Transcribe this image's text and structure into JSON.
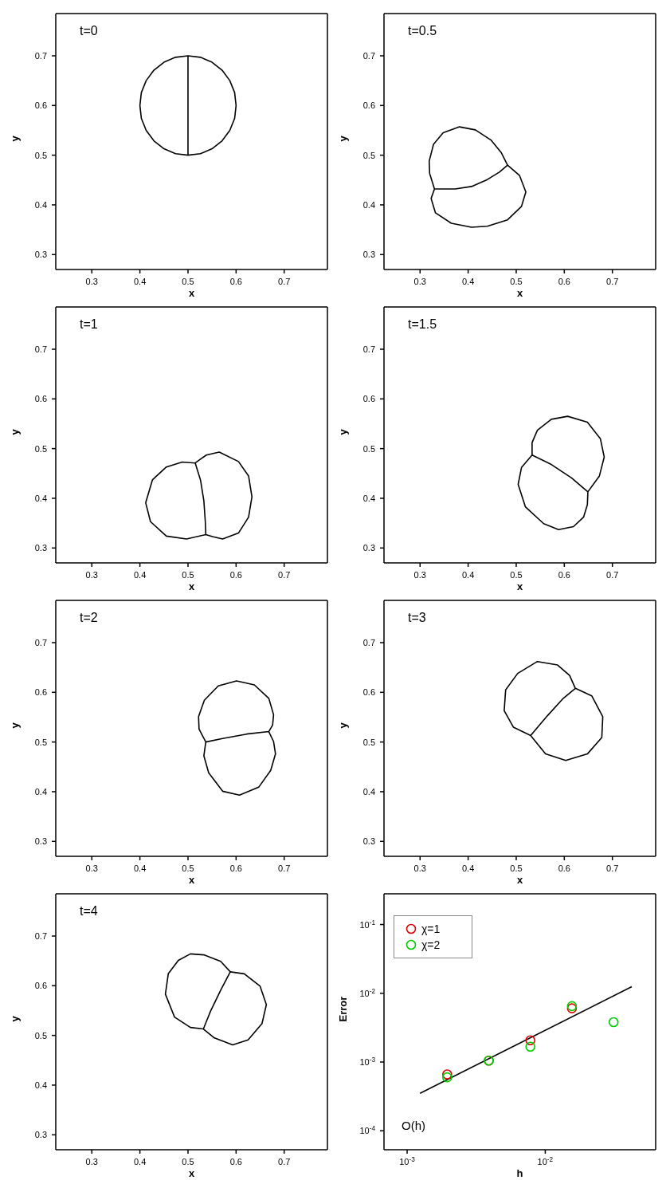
{
  "chart_data": [
    {
      "type": "line",
      "title": "t=0",
      "xlabel": "x",
      "ylabel": "y",
      "xlim": [
        0.225,
        0.79
      ],
      "ylim": [
        0.27,
        0.785
      ],
      "xticks": [
        0.3,
        0.4,
        0.5,
        0.6,
        0.7
      ],
      "yticks": [
        0.3,
        0.4,
        0.5,
        0.6,
        0.7
      ],
      "series": [
        {
          "color": "#000000",
          "x": [
            0.5,
            0.474,
            0.45,
            0.429,
            0.413,
            0.403,
            0.4,
            0.403,
            0.413,
            0.429,
            0.45,
            0.474,
            0.5,
            0.5,
            0.526,
            0.55,
            0.571,
            0.587,
            0.597,
            0.6,
            0.597,
            0.587,
            0.571,
            0.55,
            0.526,
            0.5
          ],
          "values": [
            0.7,
            0.697,
            0.687,
            0.671,
            0.65,
            0.626,
            0.6,
            0.574,
            0.55,
            0.529,
            0.513,
            0.503,
            0.5,
            0.7,
            0.697,
            0.687,
            0.671,
            0.65,
            0.626,
            0.6,
            0.574,
            0.55,
            0.529,
            0.513,
            0.503,
            0.5
          ]
        }
      ]
    },
    {
      "type": "line",
      "title": "t=0.5",
      "xlabel": "x",
      "ylabel": "y",
      "xlim": [
        0.225,
        0.79
      ],
      "ylim": [
        0.27,
        0.785
      ],
      "xticks": [
        0.3,
        0.4,
        0.5,
        0.6,
        0.7
      ],
      "yticks": [
        0.3,
        0.4,
        0.5,
        0.6,
        0.7
      ],
      "series": [
        {
          "color": "#000000",
          "x": [
            0.33,
            0.32,
            0.319,
            0.328,
            0.348,
            0.382,
            0.415,
            0.448,
            0.469,
            0.482,
            0.465,
            0.44,
            0.407,
            0.373,
            0.33,
            0.323,
            0.332,
            0.365,
            0.407,
            0.44,
            0.482,
            0.511,
            0.52,
            0.507,
            0.482
          ],
          "values": [
            0.432,
            0.463,
            0.488,
            0.522,
            0.545,
            0.557,
            0.551,
            0.53,
            0.505,
            0.48,
            0.466,
            0.451,
            0.437,
            0.432,
            0.432,
            0.413,
            0.384,
            0.363,
            0.355,
            0.357,
            0.37,
            0.397,
            0.426,
            0.459,
            0.48
          ]
        }
      ]
    },
    {
      "type": "line",
      "title": "t=1",
      "xlabel": "x",
      "ylabel": "y",
      "xlim": [
        0.225,
        0.79
      ],
      "ylim": [
        0.27,
        0.785
      ],
      "xticks": [
        0.3,
        0.4,
        0.5,
        0.6,
        0.7
      ],
      "yticks": [
        0.3,
        0.4,
        0.5,
        0.6,
        0.7
      ],
      "series": [
        {
          "color": "#000000",
          "x": [
            0.515,
            0.488,
            0.455,
            0.426,
            0.412,
            0.422,
            0.455,
            0.497,
            0.537,
            0.536,
            0.533,
            0.526,
            0.515,
            0.538,
            0.565,
            0.605,
            0.626,
            0.633,
            0.626,
            0.605,
            0.572,
            0.551,
            0.537
          ],
          "values": [
            0.471,
            0.473,
            0.463,
            0.437,
            0.391,
            0.353,
            0.324,
            0.318,
            0.327,
            0.353,
            0.395,
            0.437,
            0.471,
            0.487,
            0.493,
            0.474,
            0.445,
            0.403,
            0.362,
            0.33,
            0.318,
            0.323,
            0.327
          ]
        }
      ]
    },
    {
      "type": "line",
      "title": "t=1.5",
      "xlabel": "x",
      "ylabel": "y",
      "xlim": [
        0.225,
        0.79
      ],
      "ylim": [
        0.27,
        0.785
      ],
      "xticks": [
        0.3,
        0.4,
        0.5,
        0.6,
        0.7
      ],
      "yticks": [
        0.3,
        0.4,
        0.5,
        0.6,
        0.7
      ],
      "series": [
        {
          "color": "#000000",
          "x": [
            0.533,
            0.533,
            0.544,
            0.573,
            0.607,
            0.648,
            0.675,
            0.683,
            0.673,
            0.649,
            0.615,
            0.573,
            0.533,
            0.511,
            0.504,
            0.519,
            0.557,
            0.588,
            0.619,
            0.64,
            0.648,
            0.649
          ],
          "values": [
            0.487,
            0.512,
            0.537,
            0.559,
            0.565,
            0.553,
            0.52,
            0.483,
            0.445,
            0.413,
            0.441,
            0.468,
            0.487,
            0.462,
            0.428,
            0.383,
            0.349,
            0.337,
            0.343,
            0.362,
            0.387,
            0.413
          ]
        }
      ]
    },
    {
      "type": "line",
      "title": "t=2",
      "xlabel": "x",
      "ylabel": "y",
      "xlim": [
        0.225,
        0.79
      ],
      "ylim": [
        0.27,
        0.785
      ],
      "xticks": [
        0.3,
        0.4,
        0.5,
        0.6,
        0.7
      ],
      "yticks": [
        0.3,
        0.4,
        0.5,
        0.6,
        0.7
      ],
      "series": [
        {
          "color": "#000000",
          "x": [
            0.537,
            0.523,
            0.522,
            0.534,
            0.563,
            0.601,
            0.638,
            0.668,
            0.678,
            0.676,
            0.668,
            0.622,
            0.572,
            0.537,
            0.533,
            0.543,
            0.572,
            0.607,
            0.647,
            0.672,
            0.682,
            0.678,
            0.668
          ],
          "values": [
            0.5,
            0.526,
            0.551,
            0.584,
            0.613,
            0.623,
            0.615,
            0.588,
            0.555,
            0.534,
            0.521,
            0.516,
            0.507,
            0.5,
            0.472,
            0.438,
            0.401,
            0.393,
            0.409,
            0.443,
            0.476,
            0.501,
            0.521
          ]
        }
      ]
    },
    {
      "type": "line",
      "title": "t=3",
      "xlabel": "x",
      "ylabel": "y",
      "xlim": [
        0.225,
        0.79
      ],
      "ylim": [
        0.27,
        0.785
      ],
      "xticks": [
        0.3,
        0.4,
        0.5,
        0.6,
        0.7
      ],
      "yticks": [
        0.3,
        0.4,
        0.5,
        0.6,
        0.7
      ],
      "series": [
        {
          "color": "#000000",
          "x": [
            0.53,
            0.494,
            0.475,
            0.478,
            0.503,
            0.544,
            0.586,
            0.611,
            0.623,
            0.598,
            0.565,
            0.53,
            0.561,
            0.603,
            0.648,
            0.678,
            0.68,
            0.657,
            0.623
          ],
          "values": [
            0.513,
            0.53,
            0.563,
            0.605,
            0.638,
            0.662,
            0.655,
            0.634,
            0.608,
            0.588,
            0.553,
            0.513,
            0.476,
            0.463,
            0.476,
            0.509,
            0.551,
            0.593,
            0.608
          ]
        }
      ]
    },
    {
      "type": "line",
      "title": "t=4",
      "xlabel": "x",
      "ylabel": "y",
      "xlim": [
        0.225,
        0.79
      ],
      "ylim": [
        0.27,
        0.785
      ],
      "xticks": [
        0.3,
        0.4,
        0.5,
        0.6,
        0.7
      ],
      "yticks": [
        0.3,
        0.4,
        0.5,
        0.6,
        0.7
      ],
      "series": [
        {
          "color": "#000000",
          "x": [
            0.532,
            0.505,
            0.472,
            0.453,
            0.459,
            0.48,
            0.505,
            0.534,
            0.568,
            0.588,
            0.568,
            0.547,
            0.532,
            0.555,
            0.593,
            0.625,
            0.654,
            0.663,
            0.65,
            0.617,
            0.588
          ],
          "values": [
            0.513,
            0.516,
            0.537,
            0.583,
            0.624,
            0.651,
            0.664,
            0.662,
            0.649,
            0.628,
            0.591,
            0.549,
            0.513,
            0.495,
            0.481,
            0.491,
            0.524,
            0.562,
            0.599,
            0.624,
            0.628
          ]
        }
      ]
    },
    {
      "type": "scatter",
      "xlabel": "h",
      "ylabel": "Error",
      "log": "xy",
      "xlim": [
        0.00068,
        0.063
      ],
      "ylim": [
        5.3e-05,
        0.28
      ],
      "xticks": [
        {
          "value": 0.001,
          "label": "10$^{-3}$"
        },
        {
          "value": 0.01,
          "label": "10$^{-2}$"
        }
      ],
      "yticks": [
        {
          "value": 0.0001,
          "label": "10$^{-4}$"
        },
        {
          "value": 0.001,
          "label": "10$^{-3}$"
        },
        {
          "value": 0.01,
          "label": "10$^{-2}$"
        },
        {
          "value": 0.1,
          "label": "10$^{-1}$"
        }
      ],
      "legend": "top left",
      "marker": "circle",
      "annotations": [
        "O(h)"
      ],
      "series": [
        {
          "name": "χ=1",
          "color": "#dd0000",
          "x": [
            0.00195,
            0.0039,
            0.0078,
            0.0156
          ],
          "values": [
            0.00066,
            0.00105,
            0.00207,
            0.00605
          ]
        },
        {
          "name": "χ=2",
          "color": "#00cc00",
          "x": [
            0.00195,
            0.0039,
            0.0078,
            0.0156,
            0.03125
          ],
          "values": [
            0.0006,
            0.00105,
            0.00167,
            0.0065,
            0.0038
          ]
        },
        {
          "type": "line",
          "marker": "none",
          "color": "#000000",
          "x": [
            0.00124,
            0.0423
          ],
          "values": [
            0.00035,
            0.01245
          ]
        }
      ]
    }
  ]
}
